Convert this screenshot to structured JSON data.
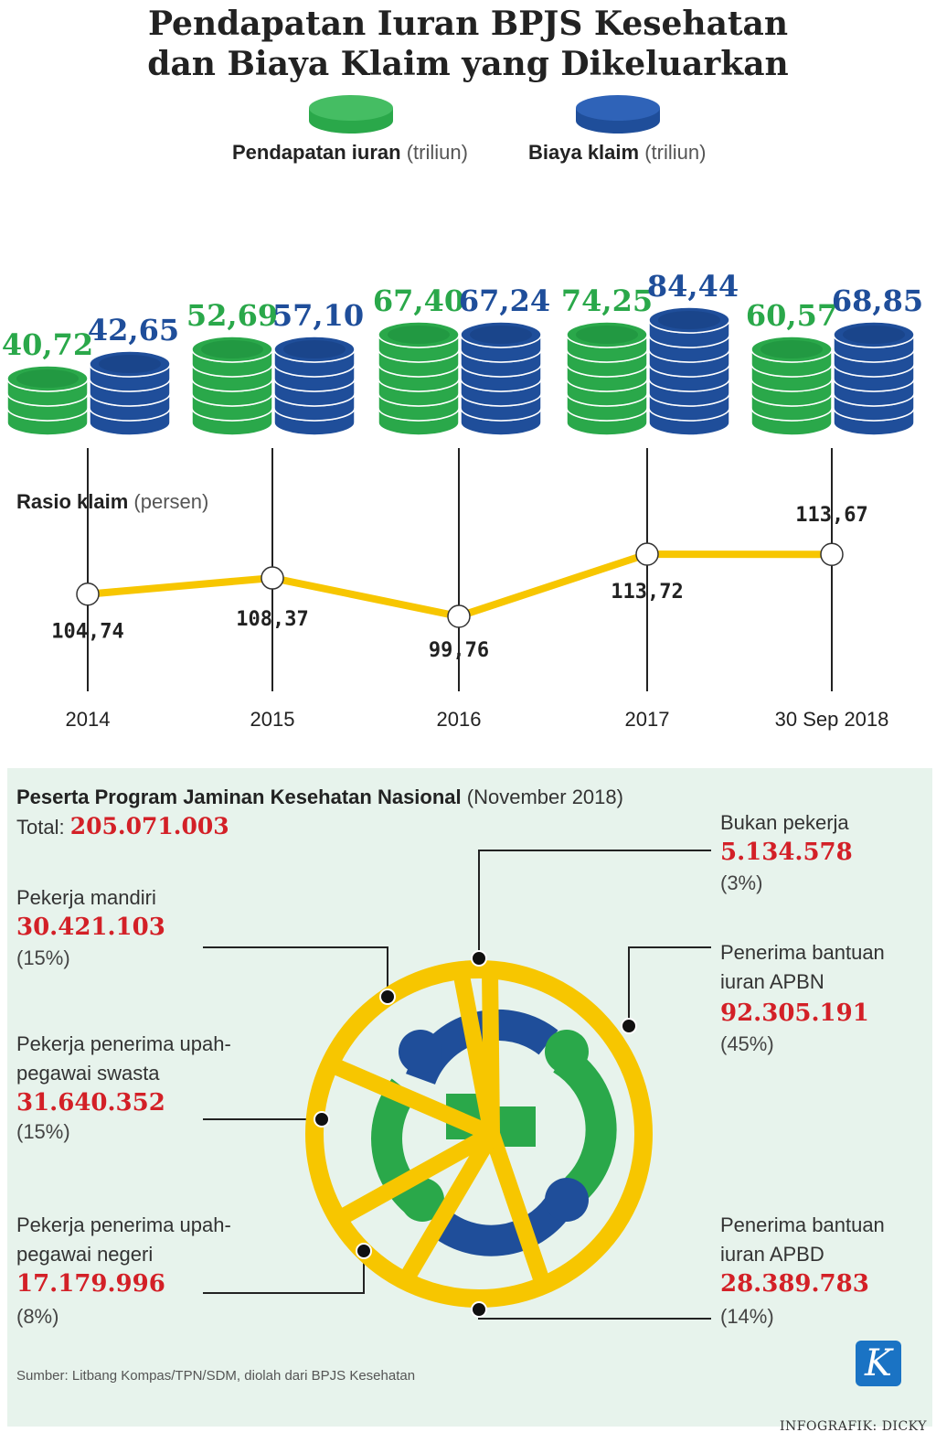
{
  "header": {
    "title_line1": "Pendapatan Iuran BPJS Kesehatan",
    "title_line2": "dan Biaya Klaim yang Dikeluarkan"
  },
  "legend": {
    "income_label": "Pendapatan iuran",
    "income_unit": "(triliun)",
    "claim_label": "Biaya klaim",
    "claim_unit": "(triliun)"
  },
  "colors": {
    "green": "#2aa84a",
    "blue": "#1f4e9a",
    "yellow": "#f7c600",
    "red": "#d32027"
  },
  "chart_data": {
    "type": "bar",
    "title": "Pendapatan Iuran BPJS Kesehatan dan Biaya Klaim yang Dikeluarkan",
    "categories": [
      "2014",
      "2015",
      "2016",
      "2017",
      "30 Sep 2018"
    ],
    "series": [
      {
        "name": "Pendapatan iuran (triliun)",
        "values": [
          40.72,
          52.69,
          67.4,
          74.25,
          60.57
        ],
        "labels": [
          "40,72",
          "52,69",
          "67,40",
          "74,25",
          "60,57"
        ]
      },
      {
        "name": "Biaya klaim (triliun)",
        "values": [
          42.65,
          57.1,
          67.24,
          84.44,
          68.85
        ],
        "labels": [
          "42,65",
          "57,10",
          "67,24",
          "84,44",
          "68,85"
        ]
      }
    ],
    "ratio": {
      "type": "line",
      "title": "Rasio klaim",
      "unit": "(persen)",
      "values": [
        104.74,
        108.37,
        99.76,
        113.72,
        113.67
      ],
      "labels": [
        "104,74",
        "108,37",
        "99,76",
        "113,72",
        "113,67"
      ]
    }
  },
  "participants": {
    "title": "Peserta Program Jaminan Kesehatan Nasional",
    "period": "(November 2018)",
    "total_label": "Total:",
    "total_value": "205.071.003",
    "segments": [
      {
        "label_lines": [
          "Bukan pekerja"
        ],
        "value": "5.134.578",
        "pct": "(3%)"
      },
      {
        "label_lines": [
          "Penerima bantuan",
          "iuran APBN"
        ],
        "value": "92.305.191",
        "pct": "(45%)"
      },
      {
        "label_lines": [
          "Penerima bantuan",
          "iuran APBD"
        ],
        "value": "28.389.783",
        "pct": "(14%)"
      },
      {
        "label_lines": [
          "Pekerja penerima upah-",
          "pegawai negeri"
        ],
        "value": "17.179.996",
        "pct": "(8%)"
      },
      {
        "label_lines": [
          "Pekerja penerima upah-",
          "pegawai swasta"
        ],
        "value": "31.640.352",
        "pct": "(15%)"
      },
      {
        "label_lines": [
          "Pekerja mandiri"
        ],
        "value": "30.421.103",
        "pct": "(15%)"
      }
    ]
  },
  "footer": {
    "source": "Sumber: Litbang Kompas/TPN/SDM, diolah dari BPJS Kesehatan",
    "logo_letter": "K",
    "credit": "INFOGRAFIK: DICKY"
  }
}
